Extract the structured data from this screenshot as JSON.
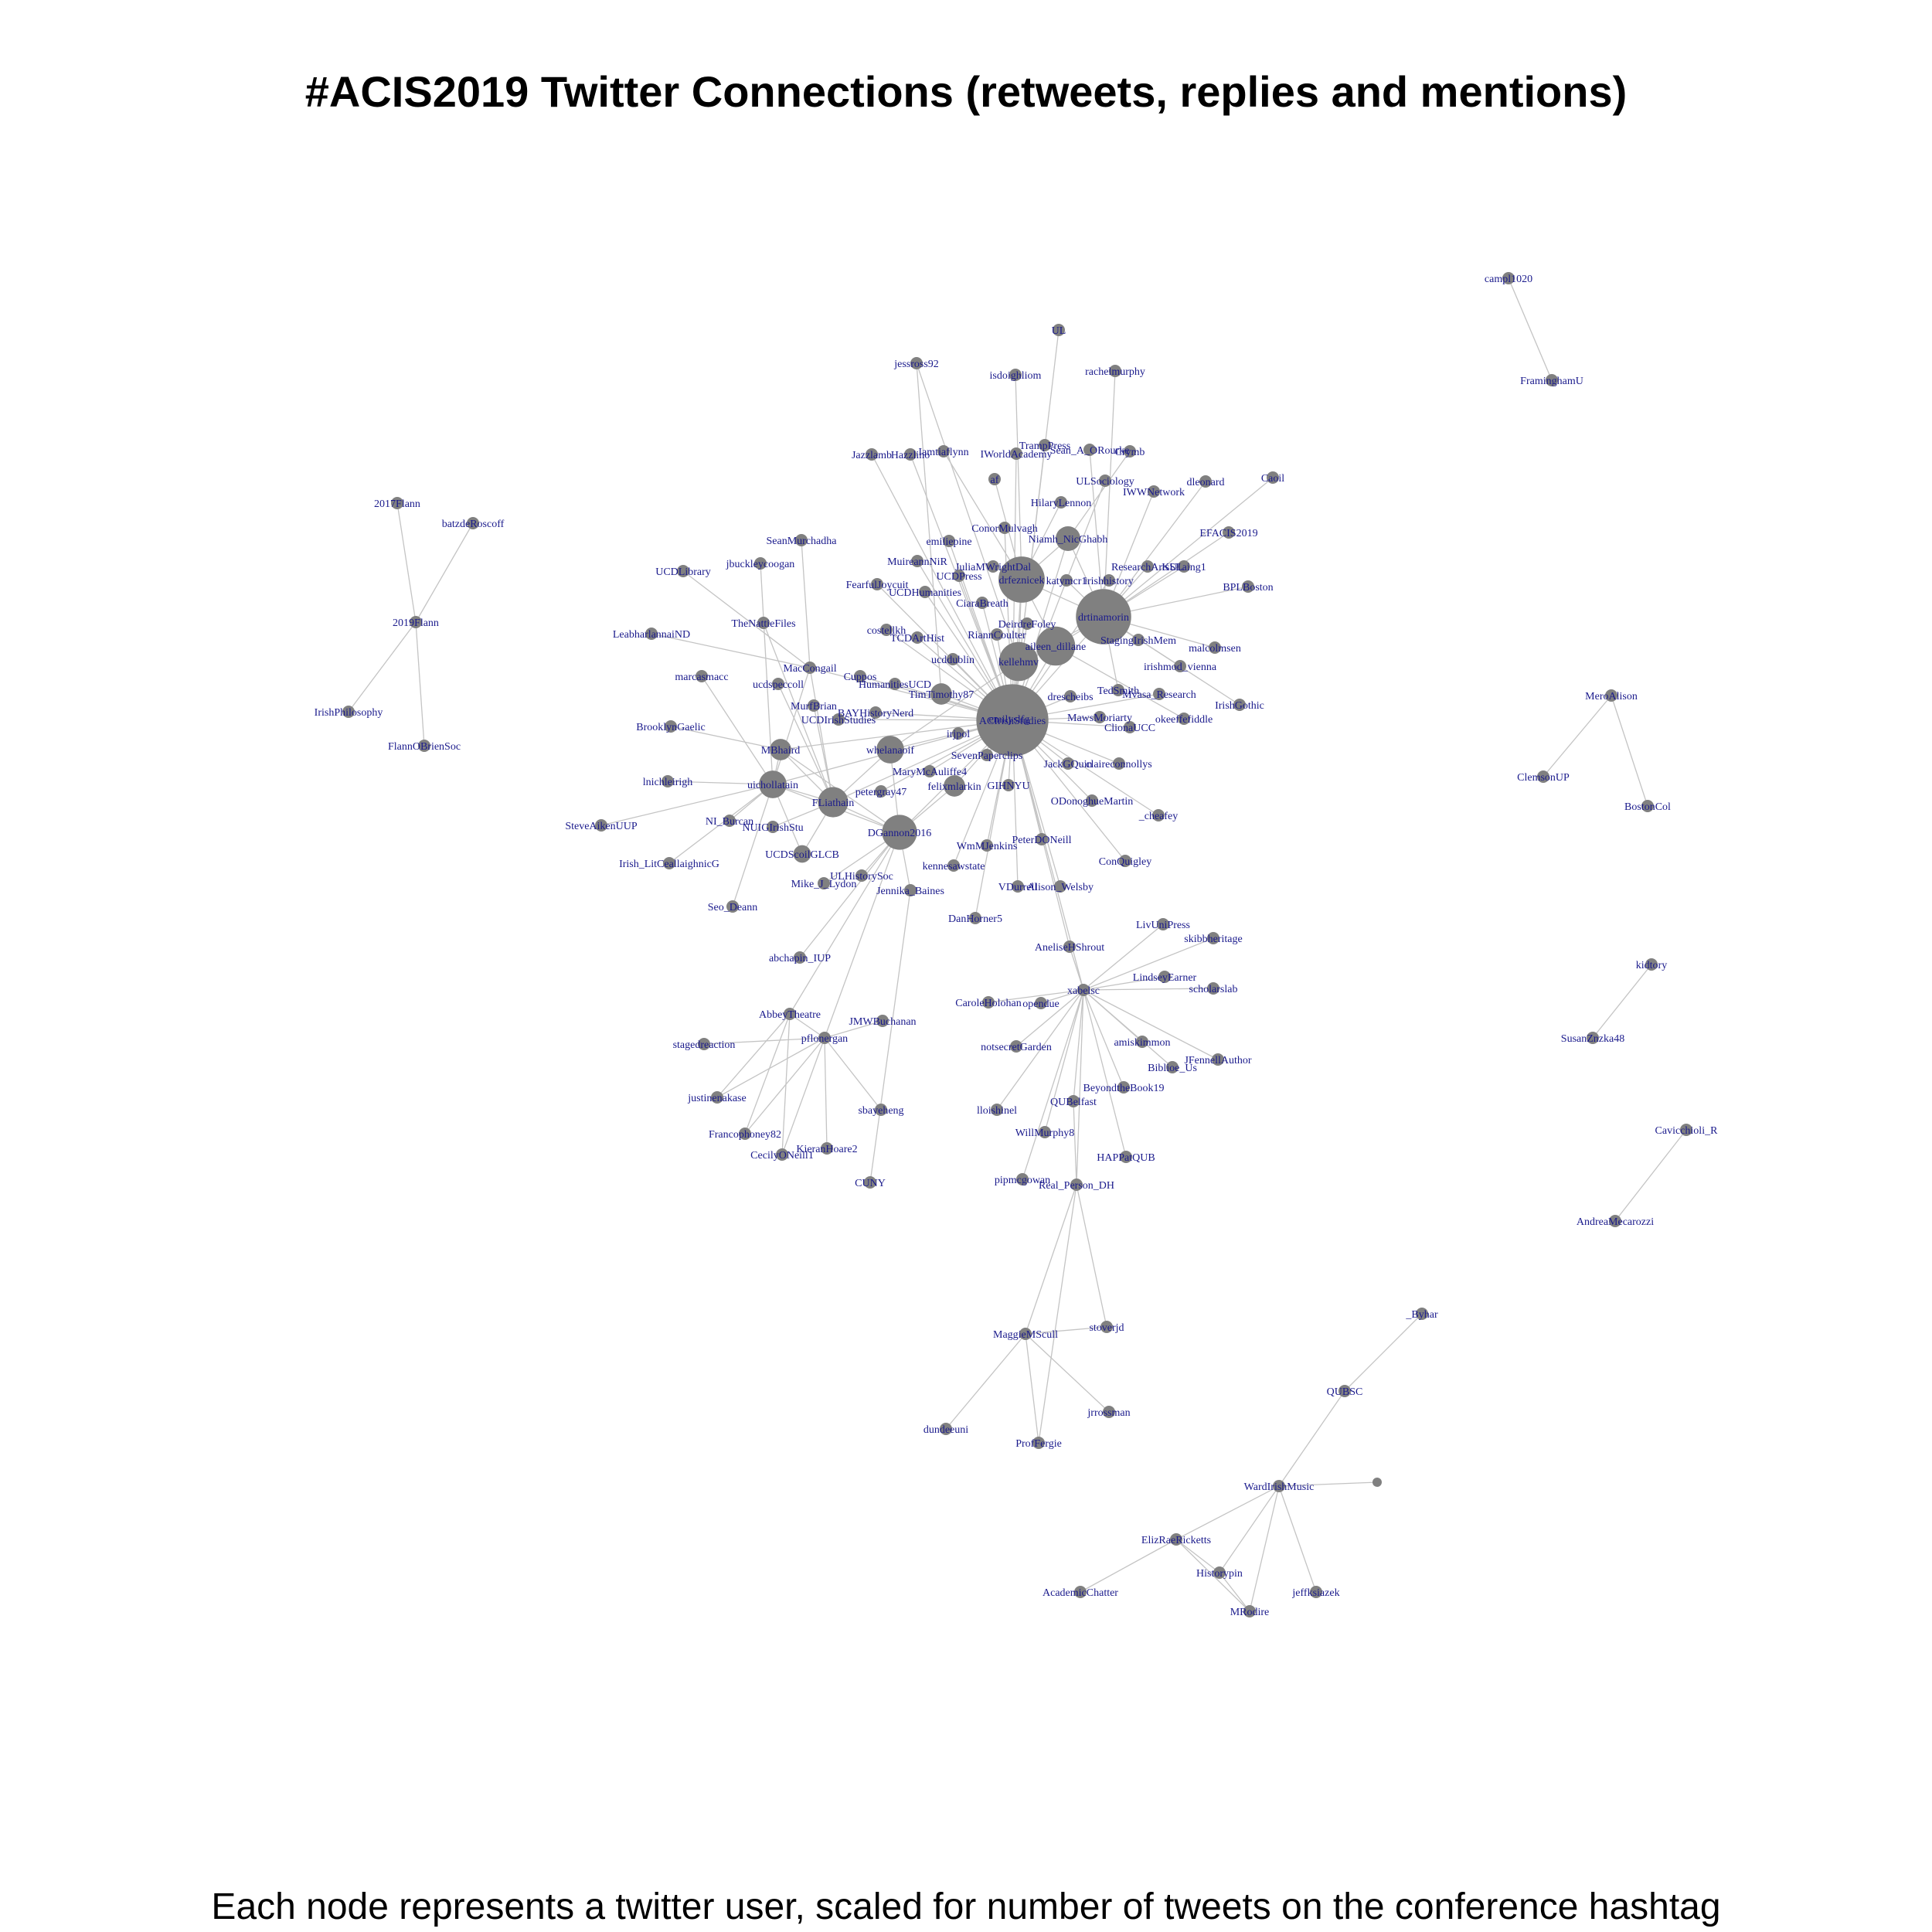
{
  "title": "#ACIS2019 Twitter Connections (retweets, replies and mentions)",
  "subtitle": "Each node represents a twitter user, scaled for number of tweets on the conference hashtag",
  "colors": {
    "edge": "#c4c4c4",
    "node": "#808080",
    "label": "#1a1a8c"
  },
  "nodes": [
    {
      "id": "campl1020",
      "weight": 1
    },
    {
      "id": "FraminghamU",
      "weight": 1
    },
    {
      "id": "2017Flann",
      "weight": 1
    },
    {
      "id": "batzdeRoscoff",
      "weight": 1
    },
    {
      "id": "2019Flann",
      "weight": 1
    },
    {
      "id": "IrishPhilosophy",
      "weight": 1
    },
    {
      "id": "FlannOBrienSoc",
      "weight": 1
    },
    {
      "id": "MeroAlison",
      "weight": 1
    },
    {
      "id": "ClemsonUP",
      "weight": 1
    },
    {
      "id": "BostonCol",
      "weight": 1
    },
    {
      "id": "kidtory",
      "weight": 1
    },
    {
      "id": "SusanZnzka48",
      "weight": 1
    },
    {
      "id": "Cavicchioli_R",
      "weight": 1
    },
    {
      "id": "AndreaMecarozzi",
      "weight": 1
    },
    {
      "id": "_Byhar",
      "weight": 1
    },
    {
      "id": "QUBSC",
      "weight": 1
    },
    {
      "id": "WardIrishMusic",
      "weight": 1
    },
    {
      "id": "ElizRaeRicketts",
      "weight": 1
    },
    {
      "id": "Historypin",
      "weight": 1
    },
    {
      "id": "MRodire",
      "weight": 1
    },
    {
      "id": "jeffksiazek",
      "weight": 1
    },
    {
      "id": "AcademicChatter",
      "weight": 1
    },
    {
      "id": "MaggieMScull",
      "weight": 1
    },
    {
      "id": "stoverjd",
      "weight": 1
    },
    {
      "id": "jrrossman",
      "weight": 1
    },
    {
      "id": "dundeeuni",
      "weight": 1
    },
    {
      "id": "ProfFergie",
      "weight": 1
    },
    {
      "id": "UL",
      "weight": 1
    },
    {
      "id": "jessross92",
      "weight": 1
    },
    {
      "id": "isdoighliom",
      "weight": 1
    },
    {
      "id": "rachelmurphy",
      "weight": 1
    },
    {
      "id": "TrampPress",
      "weight": 1
    },
    {
      "id": "Jazzlamb",
      "weight": 1
    },
    {
      "id": "Hazzlino",
      "weight": 1
    },
    {
      "id": "Iamtiaflynn",
      "weight": 1
    },
    {
      "id": "IWorldAcademy",
      "weight": 1
    },
    {
      "id": "Sean_A_ORourke",
      "weight": 1
    },
    {
      "id": "Crymb",
      "weight": 1
    },
    {
      "id": "af",
      "weight": 1
    },
    {
      "id": "ULSociology",
      "weight": 1
    },
    {
      "id": "dleonard",
      "weight": 1
    },
    {
      "id": "Caoil",
      "weight": 1
    },
    {
      "id": "HilaryLennon",
      "weight": 1
    },
    {
      "id": "IWWNetwork",
      "weight": 1
    },
    {
      "id": "ConorMulvagh",
      "weight": 1
    },
    {
      "id": "EFACIS2019",
      "weight": 1
    },
    {
      "id": "emiliepine",
      "weight": 1
    },
    {
      "id": "Niamh_NicGhabh",
      "weight": 4
    },
    {
      "id": "SeanMurchadha",
      "weight": 1
    },
    {
      "id": "MuireannNiR",
      "weight": 1
    },
    {
      "id": "JuliaMWrightDal",
      "weight": 1
    },
    {
      "id": "UCDPress",
      "weight": 1
    },
    {
      "id": "ResearchArtsUL",
      "weight": 1
    },
    {
      "id": "KSLaing1",
      "weight": 1
    },
    {
      "id": "jbuckleycoogan",
      "weight": 1
    },
    {
      "id": "UCDLibrary",
      "weight": 1
    },
    {
      "id": "FearfulJoycuit",
      "weight": 1
    },
    {
      "id": "drfeznicek",
      "weight": 14
    },
    {
      "id": "katymcr1",
      "weight": 1
    },
    {
      "id": "irishhistory",
      "weight": 1
    },
    {
      "id": "BPLBoston",
      "weight": 1
    },
    {
      "id": "UCDHumanities",
      "weight": 1
    },
    {
      "id": "CiaraBreath",
      "weight": 1
    },
    {
      "id": "drtinamorin",
      "weight": 20
    },
    {
      "id": "TheNattieFiles",
      "weight": 1
    },
    {
      "id": "LeabharlannaiND",
      "weight": 1
    },
    {
      "id": "DeirdreFoley",
      "weight": 1
    },
    {
      "id": "costellkh",
      "weight": 1
    },
    {
      "id": "TCDArtHist",
      "weight": 1
    },
    {
      "id": "RiannCoulter",
      "weight": 1
    },
    {
      "id": "aileen_dillane",
      "weight": 10
    },
    {
      "id": "StagingIrishMem",
      "weight": 1
    },
    {
      "id": "malcolmsen",
      "weight": 1
    },
    {
      "id": "ucddublin",
      "weight": 1
    },
    {
      "id": "kellehmv",
      "weight": 10
    },
    {
      "id": "irishmod_vienna",
      "weight": 1
    },
    {
      "id": "marcasmacc",
      "weight": 1
    },
    {
      "id": "MacCongail",
      "weight": 1
    },
    {
      "id": "Cuppos",
      "weight": 1
    },
    {
      "id": "HumanitiesUCD",
      "weight": 1
    },
    {
      "id": "ucdspeccoll",
      "weight": 1
    },
    {
      "id": "TimTimothy87",
      "weight": 3
    },
    {
      "id": "drescheibs",
      "weight": 1
    },
    {
      "id": "TedSmith",
      "weight": 1
    },
    {
      "id": "Mvasa_Research",
      "weight": 1
    },
    {
      "id": "IrishGothic",
      "weight": 1
    },
    {
      "id": "MurfBrian",
      "weight": 1
    },
    {
      "id": "ACIrishStudies",
      "weight": 34
    },
    {
      "id": "emilyslfg",
      "weight": 1
    },
    {
      "id": "BAYHistoryNerd",
      "weight": 1
    },
    {
      "id": "UCDIrishStudies",
      "weight": 1
    },
    {
      "id": "MawsMoriarty",
      "weight": 1
    },
    {
      "id": "okeeffefiddle",
      "weight": 1
    },
    {
      "id": "ClionaUCC",
      "weight": 1
    },
    {
      "id": "BrooklynGaelic",
      "weight": 1
    },
    {
      "id": "irjpol",
      "weight": 1
    },
    {
      "id": "MBhaird",
      "weight": 3
    },
    {
      "id": "whelanaoif",
      "weight": 5
    },
    {
      "id": "SevenPaperclips",
      "weight": 1
    },
    {
      "id": "JackGQuin",
      "weight": 1
    },
    {
      "id": "claireconnollys",
      "weight": 1
    },
    {
      "id": "MaryMcAuliffe4",
      "weight": 1
    },
    {
      "id": "lnichleirigh",
      "weight": 1
    },
    {
      "id": "uichollatain",
      "weight": 5
    },
    {
      "id": "FLiathain",
      "weight": 6
    },
    {
      "id": "petergray47",
      "weight": 1
    },
    {
      "id": "felixmlarkin",
      "weight": 3
    },
    {
      "id": "GIHNYU",
      "weight": 1
    },
    {
      "id": "ODonoghueMartin",
      "weight": 1
    },
    {
      "id": "NI_Burcan",
      "weight": 1
    },
    {
      "id": "NUIGIrishStu",
      "weight": 1
    },
    {
      "id": "_cheafey",
      "weight": 1
    },
    {
      "id": "SteveAikenUUP",
      "weight": 1
    },
    {
      "id": "DGannon2016",
      "weight": 8
    },
    {
      "id": "UCDScoilGLCB",
      "weight": 2
    },
    {
      "id": "WmMJenkins",
      "weight": 1
    },
    {
      "id": "PeterDONeill",
      "weight": 1
    },
    {
      "id": "Irish_LitCeallaighnicG",
      "weight": 1
    },
    {
      "id": "ConQuigley",
      "weight": 1
    },
    {
      "id": "kennesawstate",
      "weight": 1
    },
    {
      "id": "ULHistorySoc",
      "weight": 1
    },
    {
      "id": "Mike_J_Lydon",
      "weight": 1
    },
    {
      "id": "Jennika_Baines",
      "weight": 1
    },
    {
      "id": "VDurrell",
      "weight": 1
    },
    {
      "id": "Alison_Welsby",
      "weight": 1
    },
    {
      "id": "Seo_Deann",
      "weight": 1
    },
    {
      "id": "DanHorner5",
      "weight": 1
    },
    {
      "id": "LivUniPress",
      "weight": 1
    },
    {
      "id": "skibbheritage",
      "weight": 1
    },
    {
      "id": "AneliseHShrout",
      "weight": 1
    },
    {
      "id": "abchapin_IUP",
      "weight": 1
    },
    {
      "id": "LindseyEarner",
      "weight": 1
    },
    {
      "id": "xabelsc",
      "weight": 1
    },
    {
      "id": "scholarslab",
      "weight": 1
    },
    {
      "id": "AbbeyTheatre",
      "weight": 1
    },
    {
      "id": "CaroleHolohan",
      "weight": 1
    },
    {
      "id": "opendue",
      "weight": 1
    },
    {
      "id": "JMWBuchanan",
      "weight": 1
    },
    {
      "id": "pflonergan",
      "weight": 1
    },
    {
      "id": "stagedreaction",
      "weight": 1
    },
    {
      "id": "amiskimmon",
      "weight": 1
    },
    {
      "id": "notsecretGarden",
      "weight": 1
    },
    {
      "id": "JFennellAuthor",
      "weight": 1
    },
    {
      "id": "Biblioe_Us",
      "weight": 1
    },
    {
      "id": "justinenakase",
      "weight": 1
    },
    {
      "id": "BeyondtheBook19",
      "weight": 1
    },
    {
      "id": "sbayeheng",
      "weight": 1
    },
    {
      "id": "lloishinel",
      "weight": 1
    },
    {
      "id": "QUBelfast",
      "weight": 1
    },
    {
      "id": "Francophoney82",
      "weight": 1
    },
    {
      "id": "WillMurphy8",
      "weight": 1
    },
    {
      "id": "KieranHoare2",
      "weight": 1
    },
    {
      "id": "CecilyONeill1",
      "weight": 1
    },
    {
      "id": "HAPPatQUB",
      "weight": 1
    },
    {
      "id": "pipmcgowan",
      "weight": 1
    },
    {
      "id": "Real_Person_DH",
      "weight": 1
    },
    {
      "id": "CUNY",
      "weight": 1
    }
  ],
  "edges": [
    [
      "campl1020",
      "FraminghamU"
    ],
    [
      "2017Flann",
      "2019Flann"
    ],
    [
      "batzdeRoscoff",
      "2019Flann"
    ],
    [
      "2019Flann",
      "IrishPhilosophy"
    ],
    [
      "2019Flann",
      "FlannOBrienSoc"
    ],
    [
      "MeroAlison",
      "ClemsonUP"
    ],
    [
      "MeroAlison",
      "BostonCol"
    ],
    [
      "kidtory",
      "SusanZnzka48"
    ],
    [
      "Cavicchioli_R",
      "AndreaMecarozzi"
    ],
    [
      "_Byhar",
      "QUBSC"
    ],
    [
      "QUBSC",
      "WardIrishMusic"
    ],
    [
      "WardIrishMusic",
      "ElizRaeRicketts"
    ],
    [
      "WardIrishMusic",
      "Historypin"
    ],
    [
      "WardIrishMusic",
      "MRodire"
    ],
    [
      "WardIrishMusic",
      "jeffksiazek"
    ],
    [
      "ElizRaeRicketts",
      "AcademicChatter"
    ],
    [
      "ElizRaeRicketts",
      "Historypin"
    ],
    [
      "ElizRaeRicketts",
      "MRodire"
    ],
    [
      "Historypin",
      "MRodire"
    ],
    [
      "MaggieMScull",
      "stoverjd"
    ],
    [
      "MaggieMScull",
      "jrrossman"
    ],
    [
      "MaggieMScull",
      "dundeeuni"
    ],
    [
      "MaggieMScull",
      "ProfFergie"
    ],
    [
      "MaggieMScull",
      "Real_Person_DH"
    ],
    [
      "stoverjd",
      "Real_Person_DH"
    ],
    [
      "ProfFergie",
      "Real_Person_DH"
    ],
    [
      "UL",
      "ACIrishStudies"
    ],
    [
      "jessross92",
      "kellehmv"
    ],
    [
      "jessross92",
      "TimTimothy87"
    ],
    [
      "isdoighliom",
      "drfeznicek"
    ],
    [
      "rachelmurphy",
      "drtinamorin"
    ],
    [
      "TrampPress",
      "ACIrishStudies"
    ],
    [
      "Jazzlamb",
      "ACIrishStudies"
    ],
    [
      "Hazzlino",
      "ACIrishStudies"
    ],
    [
      "Iamtiaflynn",
      "drfeznicek"
    ],
    [
      "IWorldAcademy",
      "ACIrishStudies"
    ],
    [
      "Sean_A_ORourke",
      "drtinamorin"
    ],
    [
      "Crymb",
      "Niamh_NicGhabh"
    ],
    [
      "af",
      "drfeznicek"
    ],
    [
      "ULSociology",
      "ACIrishStudies"
    ],
    [
      "dleonard",
      "drtinamorin"
    ],
    [
      "Caoil",
      "drtinamorin"
    ],
    [
      "HilaryLennon",
      "drfeznicek"
    ],
    [
      "IWWNetwork",
      "drtinamorin"
    ],
    [
      "ConorMulvagh",
      "ACIrishStudies"
    ],
    [
      "EFACIS2019",
      "drtinamorin"
    ],
    [
      "emiliepine",
      "ACIrishStudies"
    ],
    [
      "Niamh_NicGhabh",
      "drtinamorin"
    ],
    [
      "Niamh_NicGhabh",
      "ACIrishStudies"
    ],
    [
      "Niamh_NicGhabh",
      "drfeznicek"
    ],
    [
      "SeanMurchadha",
      "MacCongail"
    ],
    [
      "MuireannNiR",
      "ACIrishStudies"
    ],
    [
      "JuliaMWrightDal",
      "drfeznicek"
    ],
    [
      "UCDPress",
      "ACIrishStudies"
    ],
    [
      "ResearchArtsUL",
      "drtinamorin"
    ],
    [
      "KSLaing1",
      "drtinamorin"
    ],
    [
      "jbuckleycoogan",
      "uichollatain"
    ],
    [
      "UCDLibrary",
      "MacCongail"
    ],
    [
      "FearfulJoycuit",
      "ACIrishStudies"
    ],
    [
      "drfeznicek",
      "ACIrishStudies"
    ],
    [
      "drfeznicek",
      "drtinamorin"
    ],
    [
      "drfeznicek",
      "aileen_dillane"
    ],
    [
      "drfeznicek",
      "kellehmv"
    ],
    [
      "katymcr1",
      "drtinamorin"
    ],
    [
      "irishhistory",
      "ACIrishStudies"
    ],
    [
      "BPLBoston",
      "drtinamorin"
    ],
    [
      "UCDHumanities",
      "ACIrishStudies"
    ],
    [
      "CiaraBreath",
      "ACIrishStudies"
    ],
    [
      "drtinamorin",
      "ACIrishStudies"
    ],
    [
      "drtinamorin",
      "aileen_dillane"
    ],
    [
      "drtinamorin",
      "kellehmv"
    ],
    [
      "TheNattieFiles",
      "FLiathain"
    ],
    [
      "LeabharlannaiND",
      "MacCongail"
    ],
    [
      "DeirdreFoley",
      "ACIrishStudies"
    ],
    [
      "costellkh",
      "ACIrishStudies"
    ],
    [
      "TCDArtHist",
      "ACIrishStudies"
    ],
    [
      "RiannCoulter",
      "ACIrishStudies"
    ],
    [
      "aileen_dillane",
      "ACIrishStudies"
    ],
    [
      "aileen_dillane",
      "kellehmv"
    ],
    [
      "StagingIrishMem",
      "drtinamorin"
    ],
    [
      "malcolmsen",
      "drtinamorin"
    ],
    [
      "ucddublin",
      "ACIrishStudies"
    ],
    [
      "kellehmv",
      "ACIrishStudies"
    ],
    [
      "kellehmv",
      "whelanaoif"
    ],
    [
      "irishmod_vienna",
      "drtinamorin"
    ],
    [
      "marcasmacc",
      "uichollatain"
    ],
    [
      "MacCongail",
      "ACIrishStudies"
    ],
    [
      "MacCongail",
      "FLiathain"
    ],
    [
      "MacCongail",
      "uichollatain"
    ],
    [
      "Cuppos",
      "ACIrishStudies"
    ],
    [
      "HumanitiesUCD",
      "ACIrishStudies"
    ],
    [
      "ucdspeccoll",
      "FLiathain"
    ],
    [
      "TimTimothy87",
      "ACIrishStudies"
    ],
    [
      "drescheibs",
      "ACIrishStudies"
    ],
    [
      "TedSmith",
      "drtinamorin"
    ],
    [
      "Mvasa_Research",
      "ACIrishStudies"
    ],
    [
      "IrishGothic",
      "drtinamorin"
    ],
    [
      "MurfBrian",
      "FLiathain"
    ],
    [
      "emilyslfg",
      "ACIrishStudies"
    ],
    [
      "BAYHistoryNerd",
      "ACIrishStudies"
    ],
    [
      "UCDIrishStudies",
      "ACIrishStudies"
    ],
    [
      "MawsMoriarty",
      "ACIrishStudies"
    ],
    [
      "okeeffefiddle",
      "aileen_dillane"
    ],
    [
      "ClionaUCC",
      "ACIrishStudies"
    ],
    [
      "BrooklynGaelic",
      "MBhaird"
    ],
    [
      "irjpol",
      "ACIrishStudies"
    ],
    [
      "MBhaird",
      "FLiathain"
    ],
    [
      "MBhaird",
      "uichollatain"
    ],
    [
      "MBhaird",
      "DGannon2016"
    ],
    [
      "MBhaird",
      "ACIrishStudies"
    ],
    [
      "whelanaoif",
      "ACIrishStudies"
    ],
    [
      "whelanaoif",
      "DGannon2016"
    ],
    [
      "whelanaoif",
      "FLiathain"
    ],
    [
      "SevenPaperclips",
      "ACIrishStudies"
    ],
    [
      "JackGQuin",
      "ACIrishStudies"
    ],
    [
      "claireconnollys",
      "ACIrishStudies"
    ],
    [
      "MaryMcAuliffe4",
      "ACIrishStudies"
    ],
    [
      "lnichleirigh",
      "uichollatain"
    ],
    [
      "uichollatain",
      "FLiathain"
    ],
    [
      "uichollatain",
      "DGannon2016"
    ],
    [
      "uichollatain",
      "ACIrishStudies"
    ],
    [
      "FLiathain",
      "DGannon2016"
    ],
    [
      "FLiathain",
      "ACIrishStudies"
    ],
    [
      "petergray47",
      "ACIrishStudies"
    ],
    [
      "felixmlarkin",
      "ACIrishStudies"
    ],
    [
      "felixmlarkin",
      "DGannon2016"
    ],
    [
      "GIHNYU",
      "ACIrishStudies"
    ],
    [
      "ODonoghueMartin",
      "ACIrishStudies"
    ],
    [
      "NI_Burcan",
      "uichollatain"
    ],
    [
      "NUIGIrishStu",
      "FLiathain"
    ],
    [
      "_cheafey",
      "ACIrishStudies"
    ],
    [
      "SteveAikenUUP",
      "uichollatain"
    ],
    [
      "DGannon2016",
      "ACIrishStudies"
    ],
    [
      "UCDScoilGLCB",
      "FLiathain"
    ],
    [
      "UCDScoilGLCB",
      "uichollatain"
    ],
    [
      "WmMJenkins",
      "ACIrishStudies"
    ],
    [
      "PeterDONeill",
      "ACIrishStudies"
    ],
    [
      "Irish_LitCeallaighnicG",
      "uichollatain"
    ],
    [
      "ConQuigley",
      "ACIrishStudies"
    ],
    [
      "kennesawstate",
      "ACIrishStudies"
    ],
    [
      "ULHistorySoc",
      "DGannon2016"
    ],
    [
      "Mike_J_Lydon",
      "DGannon2016"
    ],
    [
      "Jennika_Baines",
      "DGannon2016"
    ],
    [
      "Jennika_Baines",
      "CUNY"
    ],
    [
      "VDurrell",
      "ACIrishStudies"
    ],
    [
      "Alison_Welsby",
      "ACIrishStudies"
    ],
    [
      "Seo_Deann",
      "uichollatain"
    ],
    [
      "DanHorner5",
      "ACIrishStudies"
    ],
    [
      "LivUniPress",
      "xabelsc"
    ],
    [
      "skibbheritage",
      "xabelsc"
    ],
    [
      "AneliseHShrout",
      "ACIrishStudies"
    ],
    [
      "AneliseHShrout",
      "xabelsc"
    ],
    [
      "abchapin_IUP",
      "DGannon2016"
    ],
    [
      "LindseyEarner",
      "xabelsc"
    ],
    [
      "xabelsc",
      "ACIrishStudies"
    ],
    [
      "scholarslab",
      "xabelsc"
    ],
    [
      "AbbeyTheatre",
      "DGannon2016"
    ],
    [
      "AbbeyTheatre",
      "pflonergan"
    ],
    [
      "CaroleHolohan",
      "xabelsc"
    ],
    [
      "opendue",
      "xabelsc"
    ],
    [
      "JMWBuchanan",
      "pflonergan"
    ],
    [
      "pflonergan",
      "DGannon2016"
    ],
    [
      "stagedreaction",
      "pflonergan"
    ],
    [
      "amiskimmon",
      "xabelsc"
    ],
    [
      "notsecretGarden",
      "xabelsc"
    ],
    [
      "JFennellAuthor",
      "xabelsc"
    ],
    [
      "Biblioe_Us",
      "xabelsc"
    ],
    [
      "justinenakase",
      "AbbeyTheatre"
    ],
    [
      "justinenakase",
      "pflonergan"
    ],
    [
      "BeyondtheBook19",
      "xabelsc"
    ],
    [
      "sbayeheng",
      "pflonergan"
    ],
    [
      "lloishinel",
      "xabelsc"
    ],
    [
      "QUBelfast",
      "xabelsc"
    ],
    [
      "Francophoney82",
      "pflonergan"
    ],
    [
      "Francophoney82",
      "AbbeyTheatre"
    ],
    [
      "WillMurphy8",
      "xabelsc"
    ],
    [
      "KieranHoare2",
      "pflonergan"
    ],
    [
      "CecilyONeill1",
      "pflonergan"
    ],
    [
      "CecilyONeill1",
      "AbbeyTheatre"
    ],
    [
      "HAPPatQUB",
      "xabelsc"
    ],
    [
      "pipmcgowan",
      "xabelsc"
    ],
    [
      "Real_Person_DH",
      "xabelsc"
    ],
    [
      "Real_Person_DH",
      "QUBelfast"
    ]
  ]
}
